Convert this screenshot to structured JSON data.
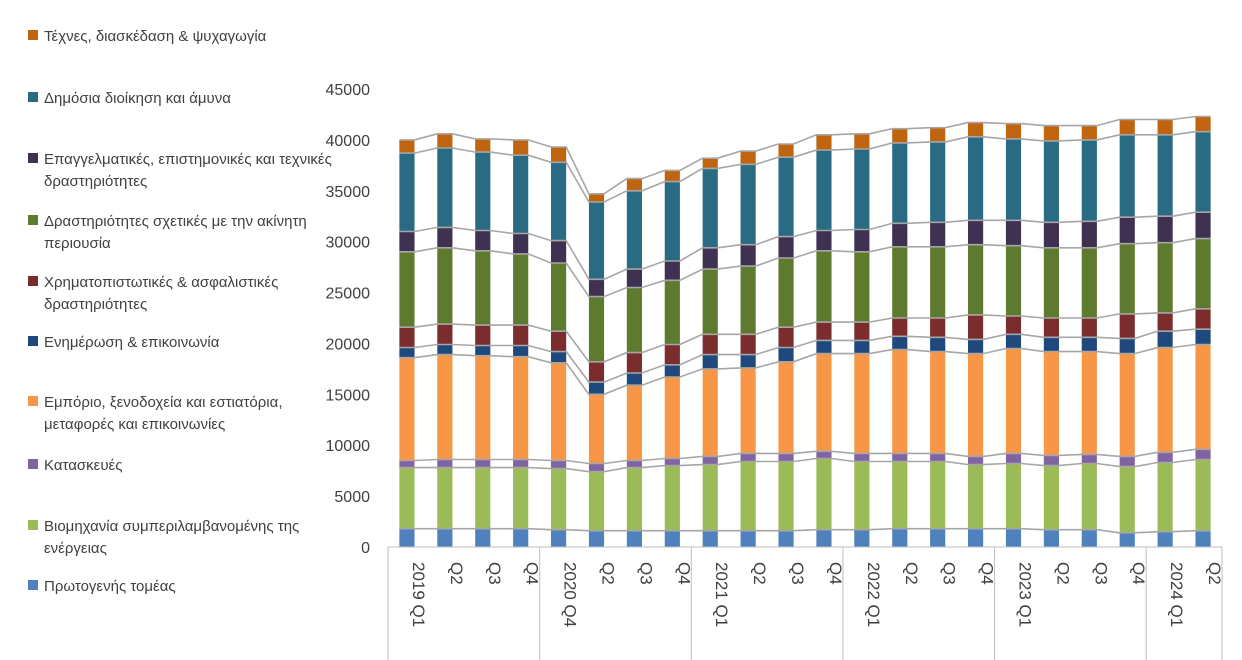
{
  "chart_data": {
    "type": "bar",
    "stacked": true,
    "title": "",
    "xlabel": "",
    "ylabel": "",
    "ylim": [
      0,
      45000
    ],
    "yticks": [
      "0",
      "5000",
      "10000",
      "15000",
      "20000",
      "25000",
      "30000",
      "35000",
      "40000",
      "45000"
    ],
    "categories": [
      "2019 Q1",
      "Q2",
      "Q3",
      "Q4",
      "2020 Q4",
      "Q2",
      "Q3",
      "Q4",
      "2021 Q1",
      "Q2",
      "Q3",
      "Q4",
      "2022 Q1",
      "Q2",
      "Q3",
      "Q4",
      "2023 Q1",
      "Q2",
      "Q3",
      "Q4",
      "2024 Q1",
      "Q2"
    ],
    "series_lines": true,
    "series": [
      {
        "name": "Πρωτογενής τομέας",
        "color": "#4f81bd",
        "values": [
          1800,
          1800,
          1800,
          1800,
          1700,
          1600,
          1600,
          1600,
          1600,
          1600,
          1600,
          1700,
          1700,
          1800,
          1800,
          1800,
          1800,
          1700,
          1700,
          1400,
          1500,
          1600
        ]
      },
      {
        "name": "Βιομηχανία συμπεριλαμβανομένης της ενέργειας",
        "color": "#9bbb59",
        "values": [
          6000,
          6000,
          6000,
          6000,
          6000,
          5800,
          6200,
          6400,
          6500,
          6800,
          6800,
          7000,
          6700,
          6600,
          6600,
          6300,
          6400,
          6300,
          6500,
          6500,
          6800,
          7000
        ]
      },
      {
        "name": "Κατασκευές",
        "color": "#8064a2",
        "values": [
          700,
          800,
          800,
          800,
          800,
          800,
          700,
          700,
          800,
          800,
          800,
          700,
          800,
          800,
          800,
          800,
          1000,
          1000,
          900,
          1000,
          1000,
          1000
        ]
      },
      {
        "name": "Εμπόριο, ξενοδοχεία και εστιατόρια, μεταφορές και επικοινωνίες",
        "color": "#f79646",
        "values": [
          10100,
          10300,
          10200,
          10100,
          9600,
          6800,
          7400,
          8000,
          8600,
          8400,
          9000,
          9600,
          9800,
          10200,
          10000,
          10100,
          10300,
          10200,
          10100,
          10100,
          10300,
          10300
        ]
      },
      {
        "name": "Ενημέρωση & επικοινωνία",
        "color": "#1f497d",
        "values": [
          1000,
          1000,
          1000,
          1100,
          1100,
          1200,
          1200,
          1200,
          1400,
          1300,
          1400,
          1300,
          1300,
          1300,
          1400,
          1400,
          1400,
          1400,
          1400,
          1500,
          1600,
          1500
        ]
      },
      {
        "name": "Χρηματοπιστωτικές & ασφαλιστικές δραστηριότητες",
        "color": "#7b2c2c",
        "values": [
          2000,
          2000,
          2000,
          2000,
          2000,
          2000,
          2000,
          2000,
          2000,
          2000,
          2000,
          1800,
          1800,
          1800,
          1900,
          2400,
          1800,
          1900,
          1900,
          2400,
          1800,
          2000
        ]
      },
      {
        "name": "Δραστηριότητες σχετικές με την ακίνητη περιουσία",
        "color": "#5e7a2e",
        "values": [
          7400,
          7500,
          7300,
          7000,
          6700,
          6400,
          6400,
          6300,
          6400,
          6700,
          6800,
          7000,
          6900,
          7000,
          7000,
          6900,
          6900,
          6900,
          6900,
          6900,
          6900,
          6900
        ]
      },
      {
        "name": "Επαγγελματικές, επιστημονικές και τεχνικές δραστηριότητες",
        "color": "#3f3151",
        "values": [
          2000,
          2000,
          2000,
          2000,
          2200,
          1700,
          1800,
          1900,
          2100,
          2100,
          2100,
          2000,
          2200,
          2300,
          2400,
          2400,
          2500,
          2500,
          2600,
          2600,
          2600,
          2600
        ]
      },
      {
        "name": "Δημόσια διοίκηση και άμυνα",
        "color": "#2a6b84",
        "values": [
          7700,
          7800,
          7700,
          7700,
          7700,
          7600,
          7700,
          7800,
          7800,
          7900,
          7800,
          7900,
          7900,
          7900,
          7900,
          8200,
          8000,
          8000,
          8000,
          8100,
          8000,
          7900
        ]
      },
      {
        "name": "Τέχνες, διασκέδαση & ψυχαγωγία",
        "color": "#c0640f",
        "values": [
          1300,
          1400,
          1300,
          1500,
          1500,
          800,
          1200,
          1100,
          1000,
          1300,
          1300,
          1500,
          1500,
          1400,
          1400,
          1400,
          1500,
          1500,
          1400,
          1500,
          1500,
          1500
        ]
      }
    ]
  }
}
